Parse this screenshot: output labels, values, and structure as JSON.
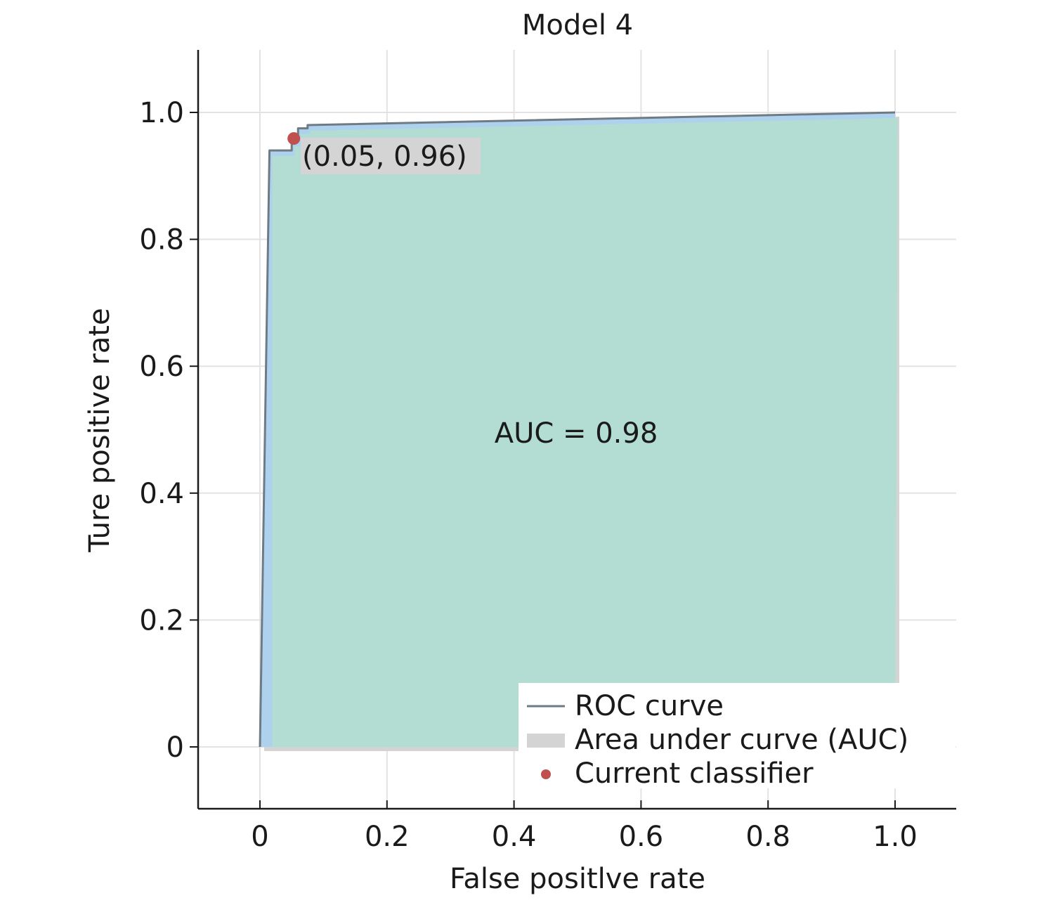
{
  "chart_data": {
    "type": "area",
    "title": "Model 4",
    "xlabel": "False positlve rate",
    "ylabel": "Ture positive rate",
    "xlim": [
      -0.1,
      1.1
    ],
    "ylim": [
      -0.1,
      1.1
    ],
    "x_ticks": [
      0,
      0.2,
      0.4,
      0.6,
      0.8,
      1.0
    ],
    "x_tick_labels": [
      "0",
      "0.2",
      "0.4",
      "0.6",
      "0.8",
      "1.0"
    ],
    "y_ticks": [
      0,
      0.2,
      0.4,
      0.6,
      0.8,
      1.0
    ],
    "y_tick_labels": [
      "0",
      "0.2",
      "0.4",
      "0.6",
      "0.8",
      "1.0"
    ],
    "grid": true,
    "series": [
      {
        "name": "ROC curve",
        "x": [
          0,
          0.015,
          0.05,
          0.05,
          0.06,
          0.06,
          0.075,
          0.075,
          1.0
        ],
        "y": [
          0,
          0.94,
          0.94,
          0.955,
          0.955,
          0.975,
          0.975,
          0.98,
          1.0
        ]
      }
    ],
    "auc_area_label": "Area under curve (AUC)",
    "current_classifier": {
      "name": "Current classifier",
      "x": 0.05,
      "y": 0.96,
      "label": "(0.05, 0.96)"
    },
    "auc_text": "AUC = 0.98",
    "legend": {
      "placement": "bottom-right",
      "entries": [
        "ROC curve",
        "Area under curve (AUC)",
        "Current classifier"
      ]
    },
    "colors": {
      "fill": "#b3ddd2",
      "fill_edge": "#aed2ee",
      "shadow": "#d4d4d4",
      "line": "#6e7b84",
      "point": "#c0504d",
      "grid": "#e3e3e3",
      "axis": "#1a1a1a"
    }
  }
}
